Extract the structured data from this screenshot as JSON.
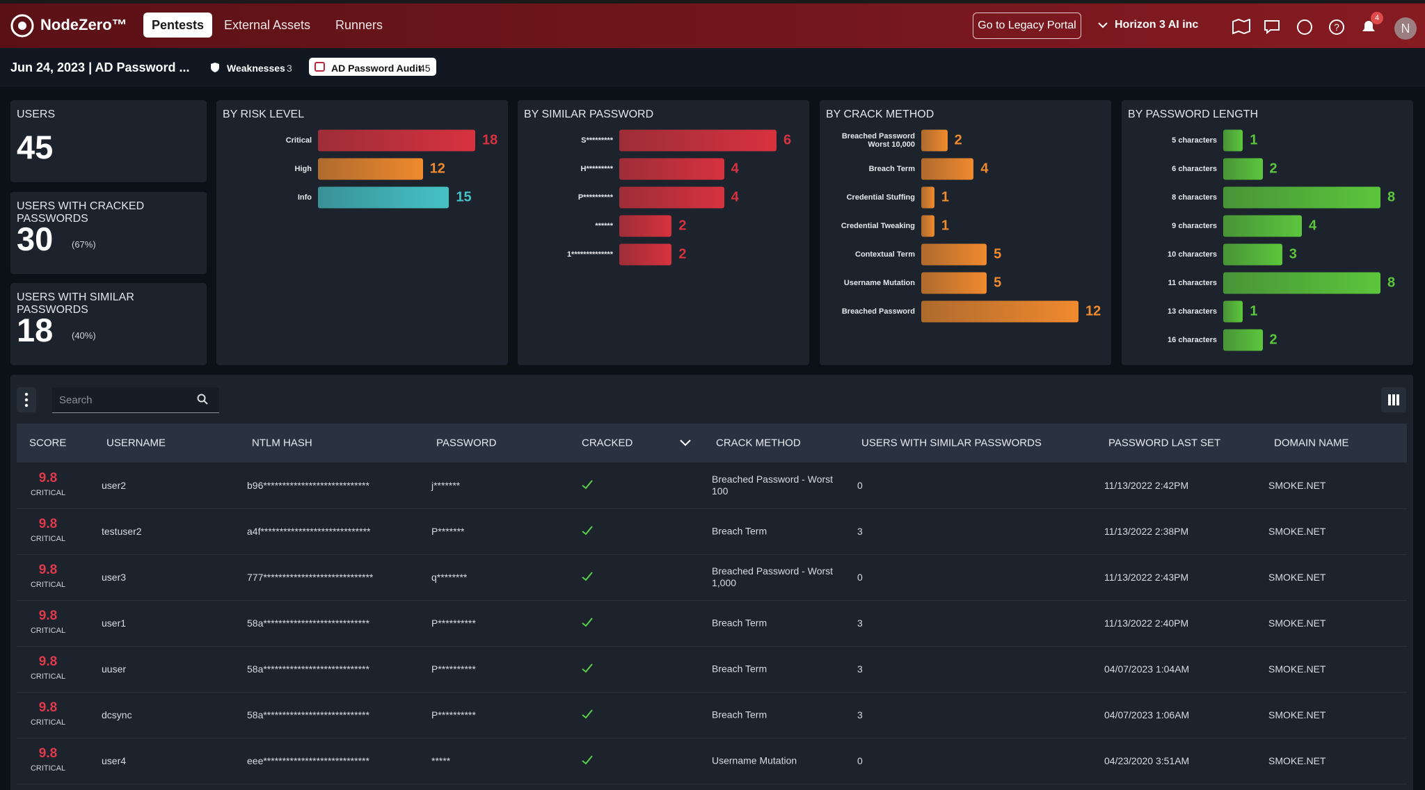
{
  "header": {
    "brand": "NodeZero™",
    "nav": [
      "Pentests",
      "External Assets",
      "Runners"
    ],
    "legacy_button": "Go to Legacy Portal",
    "org": "Horizon 3 AI inc",
    "notifications": 4,
    "avatar": "N"
  },
  "subheader": {
    "title": "Jun 24, 2023 | AD Password ...",
    "tabs": [
      {
        "label": "Weaknesses",
        "count": 3
      },
      {
        "label": "AD Password Audit",
        "count": 45
      }
    ]
  },
  "stats": [
    {
      "label": "USERS",
      "value": 45
    },
    {
      "label": "USERS WITH CRACKED PASSWORDS",
      "value": 30,
      "percent": "(67%)"
    },
    {
      "label": "USERS WITH SIMILAR PASSWORDS",
      "value": 18,
      "percent": "(40%)"
    }
  ],
  "chart_data": [
    {
      "type": "bar",
      "title": "BY RISK LEVEL",
      "categories": [
        "Critical",
        "High",
        "Info"
      ],
      "values": [
        18,
        12,
        15
      ],
      "colors": [
        "#d7323e",
        "#f08a2e",
        "#45c2c6"
      ]
    },
    {
      "type": "bar",
      "title": "BY SIMILAR PASSWORD",
      "categories": [
        "S*********",
        "H*********",
        "P**********",
        "******",
        "1**************"
      ],
      "values": [
        6,
        4,
        4,
        2,
        2
      ],
      "color": "#d7323e"
    },
    {
      "type": "bar",
      "title": "BY CRACK METHOD",
      "categories": [
        "Breached Password Worst 10,000",
        "Breach Term",
        "Credential Stuffing",
        "Credential Tweaking",
        "Contextual Term",
        "Username Mutation",
        "Breached Password"
      ],
      "values": [
        2,
        4,
        1,
        1,
        5,
        5,
        12
      ],
      "color": "#f08a2e"
    },
    {
      "type": "bar",
      "title": "BY PASSWORD LENGTH",
      "categories": [
        "5 characters",
        "6 characters",
        "8 characters",
        "9 characters",
        "10 characters",
        "11 characters",
        "13 characters",
        "16 characters"
      ],
      "values": [
        1,
        2,
        8,
        4,
        3,
        8,
        1,
        2
      ],
      "color": "#5cc63c"
    }
  ],
  "table": {
    "search_placeholder": "Search",
    "columns": [
      "SCORE",
      "USERNAME",
      "NTLM HASH",
      "PASSWORD",
      "CRACKED",
      "CRACK METHOD",
      "USERS WITH SIMILAR PASSWORDS",
      "PASSWORD LAST SET",
      "DOMAIN NAME"
    ],
    "rows": [
      {
        "score": 9.8,
        "severity": "CRITICAL",
        "username": "user2",
        "hash": "b96****************************",
        "password": "j*******",
        "method": "Breached Password - Worst 100",
        "similar": 0,
        "last_set": "11/13/2022 2:42PM",
        "domain": "SMOKE.NET"
      },
      {
        "score": 9.8,
        "severity": "CRITICAL",
        "username": "testuser2",
        "hash": "a4f*****************************",
        "password": "P*******",
        "method": "Breach Term",
        "similar": 3,
        "last_set": "11/13/2022 2:38PM",
        "domain": "SMOKE.NET"
      },
      {
        "score": 9.8,
        "severity": "CRITICAL",
        "username": "user3",
        "hash": "777*****************************",
        "password": "q********",
        "method": "Breached Password - Worst 1,000",
        "similar": 0,
        "last_set": "11/13/2022 2:43PM",
        "domain": "SMOKE.NET"
      },
      {
        "score": 9.8,
        "severity": "CRITICAL",
        "username": "user1",
        "hash": "58a****************************",
        "password": "P**********",
        "method": "Breach Term",
        "similar": 3,
        "last_set": "11/13/2022 2:40PM",
        "domain": "SMOKE.NET"
      },
      {
        "score": 9.8,
        "severity": "CRITICAL",
        "username": "uuser",
        "hash": "58a****************************",
        "password": "P**********",
        "method": "Breach Term",
        "similar": 3,
        "last_set": "04/07/2023 1:04AM",
        "domain": "SMOKE.NET"
      },
      {
        "score": 9.8,
        "severity": "CRITICAL",
        "username": "dcsync",
        "hash": "58a****************************",
        "password": "P**********",
        "method": "Breach Term",
        "similar": 3,
        "last_set": "04/07/2023 1:06AM",
        "domain": "SMOKE.NET"
      },
      {
        "score": 9.8,
        "severity": "CRITICAL",
        "username": "user4",
        "hash": "eee****************************",
        "password": "*****",
        "method": "Username Mutation",
        "similar": 0,
        "last_set": "04/23/2020 3:51AM",
        "domain": "SMOKE.NET"
      }
    ]
  }
}
